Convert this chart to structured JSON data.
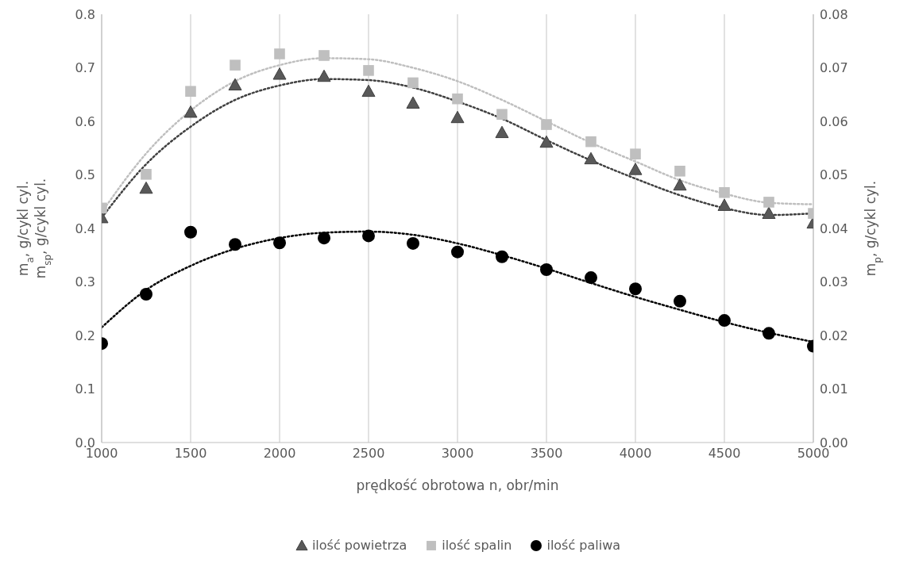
{
  "chart_data": {
    "type": "scatter",
    "xlabel": "prędkość obrotowa n, obr/min",
    "ylabel": "m$_{a}$, g/cykl cyl.\nm$_{sp}$, g/cykl cyl.",
    "y2label": "m$_{p}$, g/cykl cyl.",
    "x": [
      1000,
      1250,
      1500,
      1750,
      2000,
      2250,
      2500,
      2750,
      3000,
      3250,
      3500,
      3750,
      4000,
      4250,
      4500,
      4750,
      5000
    ],
    "series": [
      {
        "name": "ilość powietrza",
        "color": "#595959",
        "marker": "triangle",
        "values": [
          0.42,
          0.475,
          0.617,
          0.668,
          0.688,
          0.684,
          0.656,
          0.634,
          0.607,
          0.579,
          0.561,
          0.53,
          0.51,
          0.481,
          0.443,
          0.428,
          0.41
        ]
      },
      {
        "name": "ilość spalin",
        "color": "#bfbfbf",
        "marker": "square",
        "values": [
          0.438,
          0.501,
          0.656,
          0.705,
          0.726,
          0.723,
          0.695,
          0.672,
          0.642,
          0.613,
          0.594,
          0.562,
          0.539,
          0.507,
          0.467,
          0.449,
          0.428
        ]
      },
      {
        "name": "ilość paliwa",
        "color": "#000000",
        "marker": "circle",
        "axis": "y2",
        "values": [
          0.0185,
          0.0277,
          0.0393,
          0.037,
          0.0373,
          0.0382,
          0.0386,
          0.0372,
          0.0356,
          0.0347,
          0.0323,
          0.0308,
          0.0287,
          0.0264,
          0.0228,
          0.0204,
          0.018
        ]
      },
      {
        "type": "line",
        "color": "#404040",
        "line_style": "dotted",
        "values": [
          0.42,
          0.52,
          0.59,
          0.64,
          0.667,
          0.679,
          0.677,
          0.663,
          0.637,
          0.605,
          0.565,
          0.527,
          0.493,
          0.462,
          0.438,
          0.425,
          0.428
        ]
      },
      {
        "type": "line",
        "color": "#bfbfbf",
        "line_style": "dotted",
        "values": [
          0.43,
          0.54,
          0.62,
          0.675,
          0.705,
          0.718,
          0.716,
          0.7,
          0.675,
          0.64,
          0.6,
          0.56,
          0.525,
          0.49,
          0.465,
          0.448,
          0.445
        ]
      },
      {
        "type": "line",
        "color": "#000000",
        "line_style": "dotted",
        "axis": "y2",
        "values": [
          0.0215,
          0.0285,
          0.033,
          0.0362,
          0.0382,
          0.0392,
          0.0394,
          0.0388,
          0.0372,
          0.035,
          0.0325,
          0.0298,
          0.0272,
          0.0248,
          0.0225,
          0.0205,
          0.0188
        ]
      }
    ],
    "xlim": [
      1000,
      5000
    ],
    "xticks": [
      1000,
      1500,
      2000,
      2500,
      3000,
      3500,
      4000,
      4500,
      5000
    ],
    "ylim": [
      0,
      0.8
    ],
    "yticks": [
      {
        "value": 0,
        "label": "0.0"
      },
      {
        "value": 0.1,
        "label": "0.1"
      },
      {
        "value": 0.2,
        "label": "0.2"
      },
      {
        "value": 0.3,
        "label": "0.3"
      },
      {
        "value": 0.4,
        "label": "0.4"
      },
      {
        "value": 0.5,
        "label": "0.5"
      },
      {
        "value": 0.6,
        "label": "0.6"
      },
      {
        "value": 0.7,
        "label": "0.7"
      },
      {
        "value": 0.8,
        "label": "0.8"
      }
    ],
    "y2lim": [
      0,
      0.08
    ],
    "y2ticks": [
      {
        "value": 0,
        "label": "0.00"
      },
      {
        "value": 0.01,
        "label": "0.01"
      },
      {
        "value": 0.02,
        "label": "0.02"
      },
      {
        "value": 0.03,
        "label": "0.03"
      },
      {
        "value": 0.04,
        "label": "0.04"
      },
      {
        "value": 0.05,
        "label": "0.05"
      },
      {
        "value": 0.06,
        "label": "0.06"
      },
      {
        "value": 0.07,
        "label": "0.07"
      },
      {
        "value": 0.08,
        "label": "0.08"
      }
    ],
    "grid": "x",
    "legend": "bottom"
  }
}
